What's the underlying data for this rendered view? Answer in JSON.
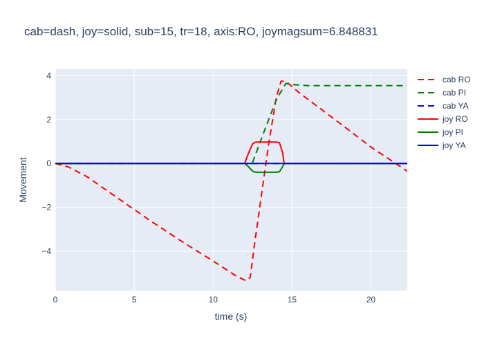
{
  "chart_data": {
    "type": "line",
    "title": "cab=dash, joy=solid, sub=15, tr=18, axis:RO, joymagsum=6.848831",
    "xlabel": "time (s)",
    "ylabel": "Movement",
    "xlim": [
      0,
      22.3
    ],
    "ylim": [
      -5.8,
      4.3
    ],
    "xticks": [
      0,
      5,
      10,
      15,
      20
    ],
    "yticks": [
      -4,
      -2,
      0,
      2,
      4
    ],
    "xtick_labels": [
      "0",
      "5",
      "10",
      "15",
      "20"
    ],
    "ytick_labels": [
      "−4",
      "−2",
      "0",
      "2",
      "4"
    ],
    "grid": true,
    "legend_position": "top-right",
    "series": [
      {
        "name": "cab RO",
        "style": "dash",
        "color": "#ff0000",
        "x": [
          0,
          0.8,
          2.0,
          4.0,
          6.0,
          8.0,
          10.0,
          11.5,
          12.1,
          12.35,
          12.6,
          13.5,
          14.0,
          14.3,
          14.6,
          15.5,
          18.0,
          20.0,
          22.3
        ],
        "y": [
          0,
          -0.15,
          -0.6,
          -1.6,
          -2.6,
          -3.55,
          -4.45,
          -5.15,
          -5.35,
          -5.2,
          -3.8,
          0.8,
          3.0,
          3.75,
          3.75,
          3.2,
          1.85,
          0.75,
          -0.35
        ]
      },
      {
        "name": "cab PI",
        "style": "dash",
        "color": "#008000",
        "x": [
          0,
          12.2,
          12.5,
          13.2,
          14.0,
          14.6,
          15.0,
          16.0,
          22.3
        ],
        "y": [
          0,
          0,
          0.05,
          1.4,
          2.9,
          3.65,
          3.6,
          3.55,
          3.55
        ]
      },
      {
        "name": "cab YA",
        "style": "dash",
        "color": "#0000ff",
        "x": [
          0,
          22.3
        ],
        "y": [
          0,
          0
        ]
      },
      {
        "name": "joy RO",
        "style": "solid",
        "color": "#ff0000",
        "x": [
          0,
          12.0,
          12.2,
          12.5,
          12.7,
          14.0,
          14.2,
          14.4,
          14.5,
          22.3
        ],
        "y": [
          0,
          0,
          0.4,
          0.9,
          0.98,
          0.98,
          0.95,
          0.5,
          0,
          0
        ]
      },
      {
        "name": "joy PI",
        "style": "solid",
        "color": "#008000",
        "x": [
          0,
          12.0,
          12.2,
          12.5,
          12.7,
          14.0,
          14.2,
          14.4,
          14.5,
          22.3
        ],
        "y": [
          0,
          0,
          -0.12,
          -0.35,
          -0.4,
          -0.4,
          -0.38,
          -0.15,
          0,
          0
        ]
      },
      {
        "name": "joy YA",
        "style": "solid",
        "color": "#0000ff",
        "x": [
          0,
          22.3
        ],
        "y": [
          0,
          0
        ]
      }
    ]
  }
}
